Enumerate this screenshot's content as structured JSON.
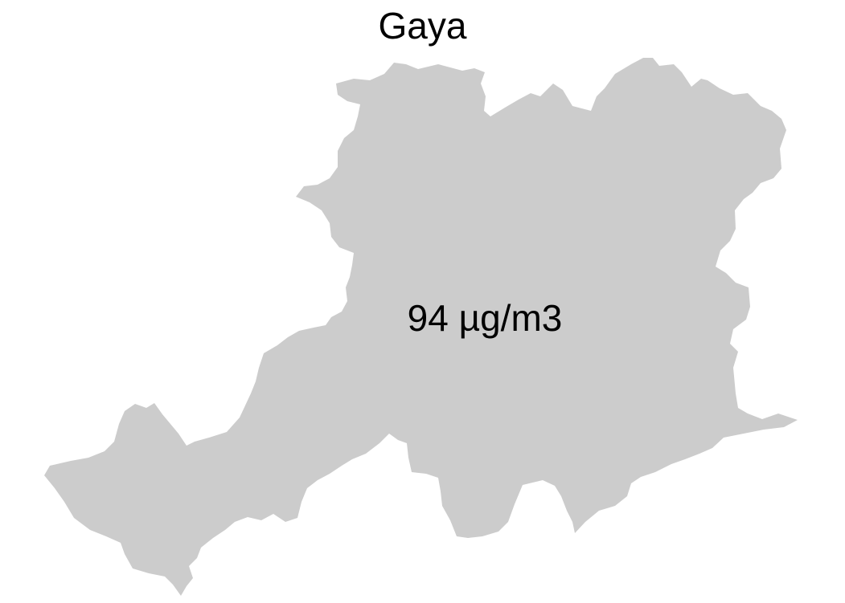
{
  "map": {
    "title": "Gaya",
    "region_label": "94 µg/m3",
    "region_fill_color": "#cccccc",
    "background_color": "#ffffff",
    "text_color": "#000000"
  }
}
